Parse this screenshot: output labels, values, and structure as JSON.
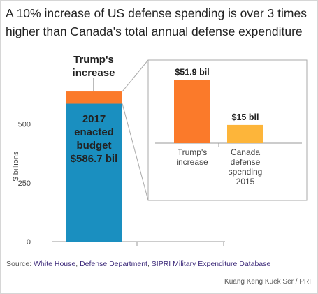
{
  "title_line1": "A 10% increase of US defense spending is over 3 times",
  "title_line2": "higher than Canada's total annual defense expenditure",
  "source": {
    "prefix": "Source: ",
    "links": [
      "White House",
      "Defense Department",
      "SIPRI Military Expenditure Database"
    ],
    "sep": ", "
  },
  "credit": "Kuang Keng Kuek Ser / PRI",
  "colors": {
    "budget": "#1a8fc0",
    "increase": "#fb7a2a",
    "canada": "#fdb53a",
    "axis": "#999999",
    "text": "#222222"
  },
  "chart_data": [
    {
      "type": "bar",
      "stacked": true,
      "ylabel": "$ billions",
      "ylim": [
        0,
        650
      ],
      "yticks": [
        0,
        250,
        500
      ],
      "grid": false,
      "segments": [
        {
          "name": "2017 enacted budget",
          "value": 586.7,
          "label": [
            "2017",
            "enacted",
            "budget",
            "$586.7 bil"
          ]
        },
        {
          "name": "Trump's increase",
          "value": 51.9,
          "label": [
            "Trump's",
            "increase"
          ]
        }
      ]
    },
    {
      "type": "bar",
      "categories": [
        [
          "Trump's",
          "increase"
        ],
        [
          "Canada",
          "defense",
          "spending",
          "2015"
        ]
      ],
      "values": [
        51.9,
        15
      ],
      "data_labels": [
        "$51.9 bil",
        "$15 bil"
      ],
      "ylim": [
        0,
        55
      ]
    }
  ]
}
